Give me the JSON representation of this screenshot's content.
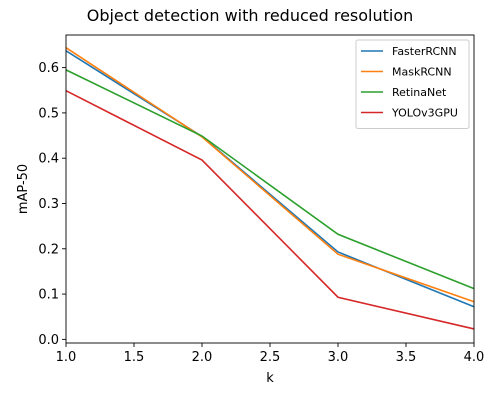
{
  "chart_data": {
    "type": "line",
    "title": "Object detection with reduced resolution",
    "xlabel": "k",
    "ylabel": "mAP-50",
    "x": [
      1.0,
      2.0,
      3.0,
      4.0
    ],
    "xlim": [
      1.0,
      4.0
    ],
    "ylim": [
      -0.008,
      0.672
    ],
    "xticks": [
      1.0,
      1.5,
      2.0,
      2.5,
      3.0,
      3.5,
      4.0
    ],
    "xtick_labels": [
      "1.0",
      "1.5",
      "2.0",
      "2.5",
      "3.0",
      "3.5",
      "4.0"
    ],
    "yticks": [
      0.0,
      0.1,
      0.2,
      0.3,
      0.4,
      0.5,
      0.6
    ],
    "ytick_labels": [
      "0.0",
      "0.1",
      "0.2",
      "0.3",
      "0.4",
      "0.5",
      "0.6"
    ],
    "grid": false,
    "legend_position": "top-right",
    "series": [
      {
        "name": "FasterRCNN",
        "color": "#1f77b4",
        "values": [
          0.637,
          0.448,
          0.193,
          0.072
        ]
      },
      {
        "name": "MaskRCNN",
        "color": "#ff7f0e",
        "values": [
          0.644,
          0.447,
          0.188,
          0.083
        ]
      },
      {
        "name": "RetinaNet",
        "color": "#2ca02c",
        "values": [
          0.595,
          0.449,
          0.232,
          0.112
        ]
      },
      {
        "name": "YOLOv3GPU",
        "color": "#d62728",
        "values": [
          0.549,
          0.396,
          0.093,
          0.023
        ]
      }
    ]
  }
}
